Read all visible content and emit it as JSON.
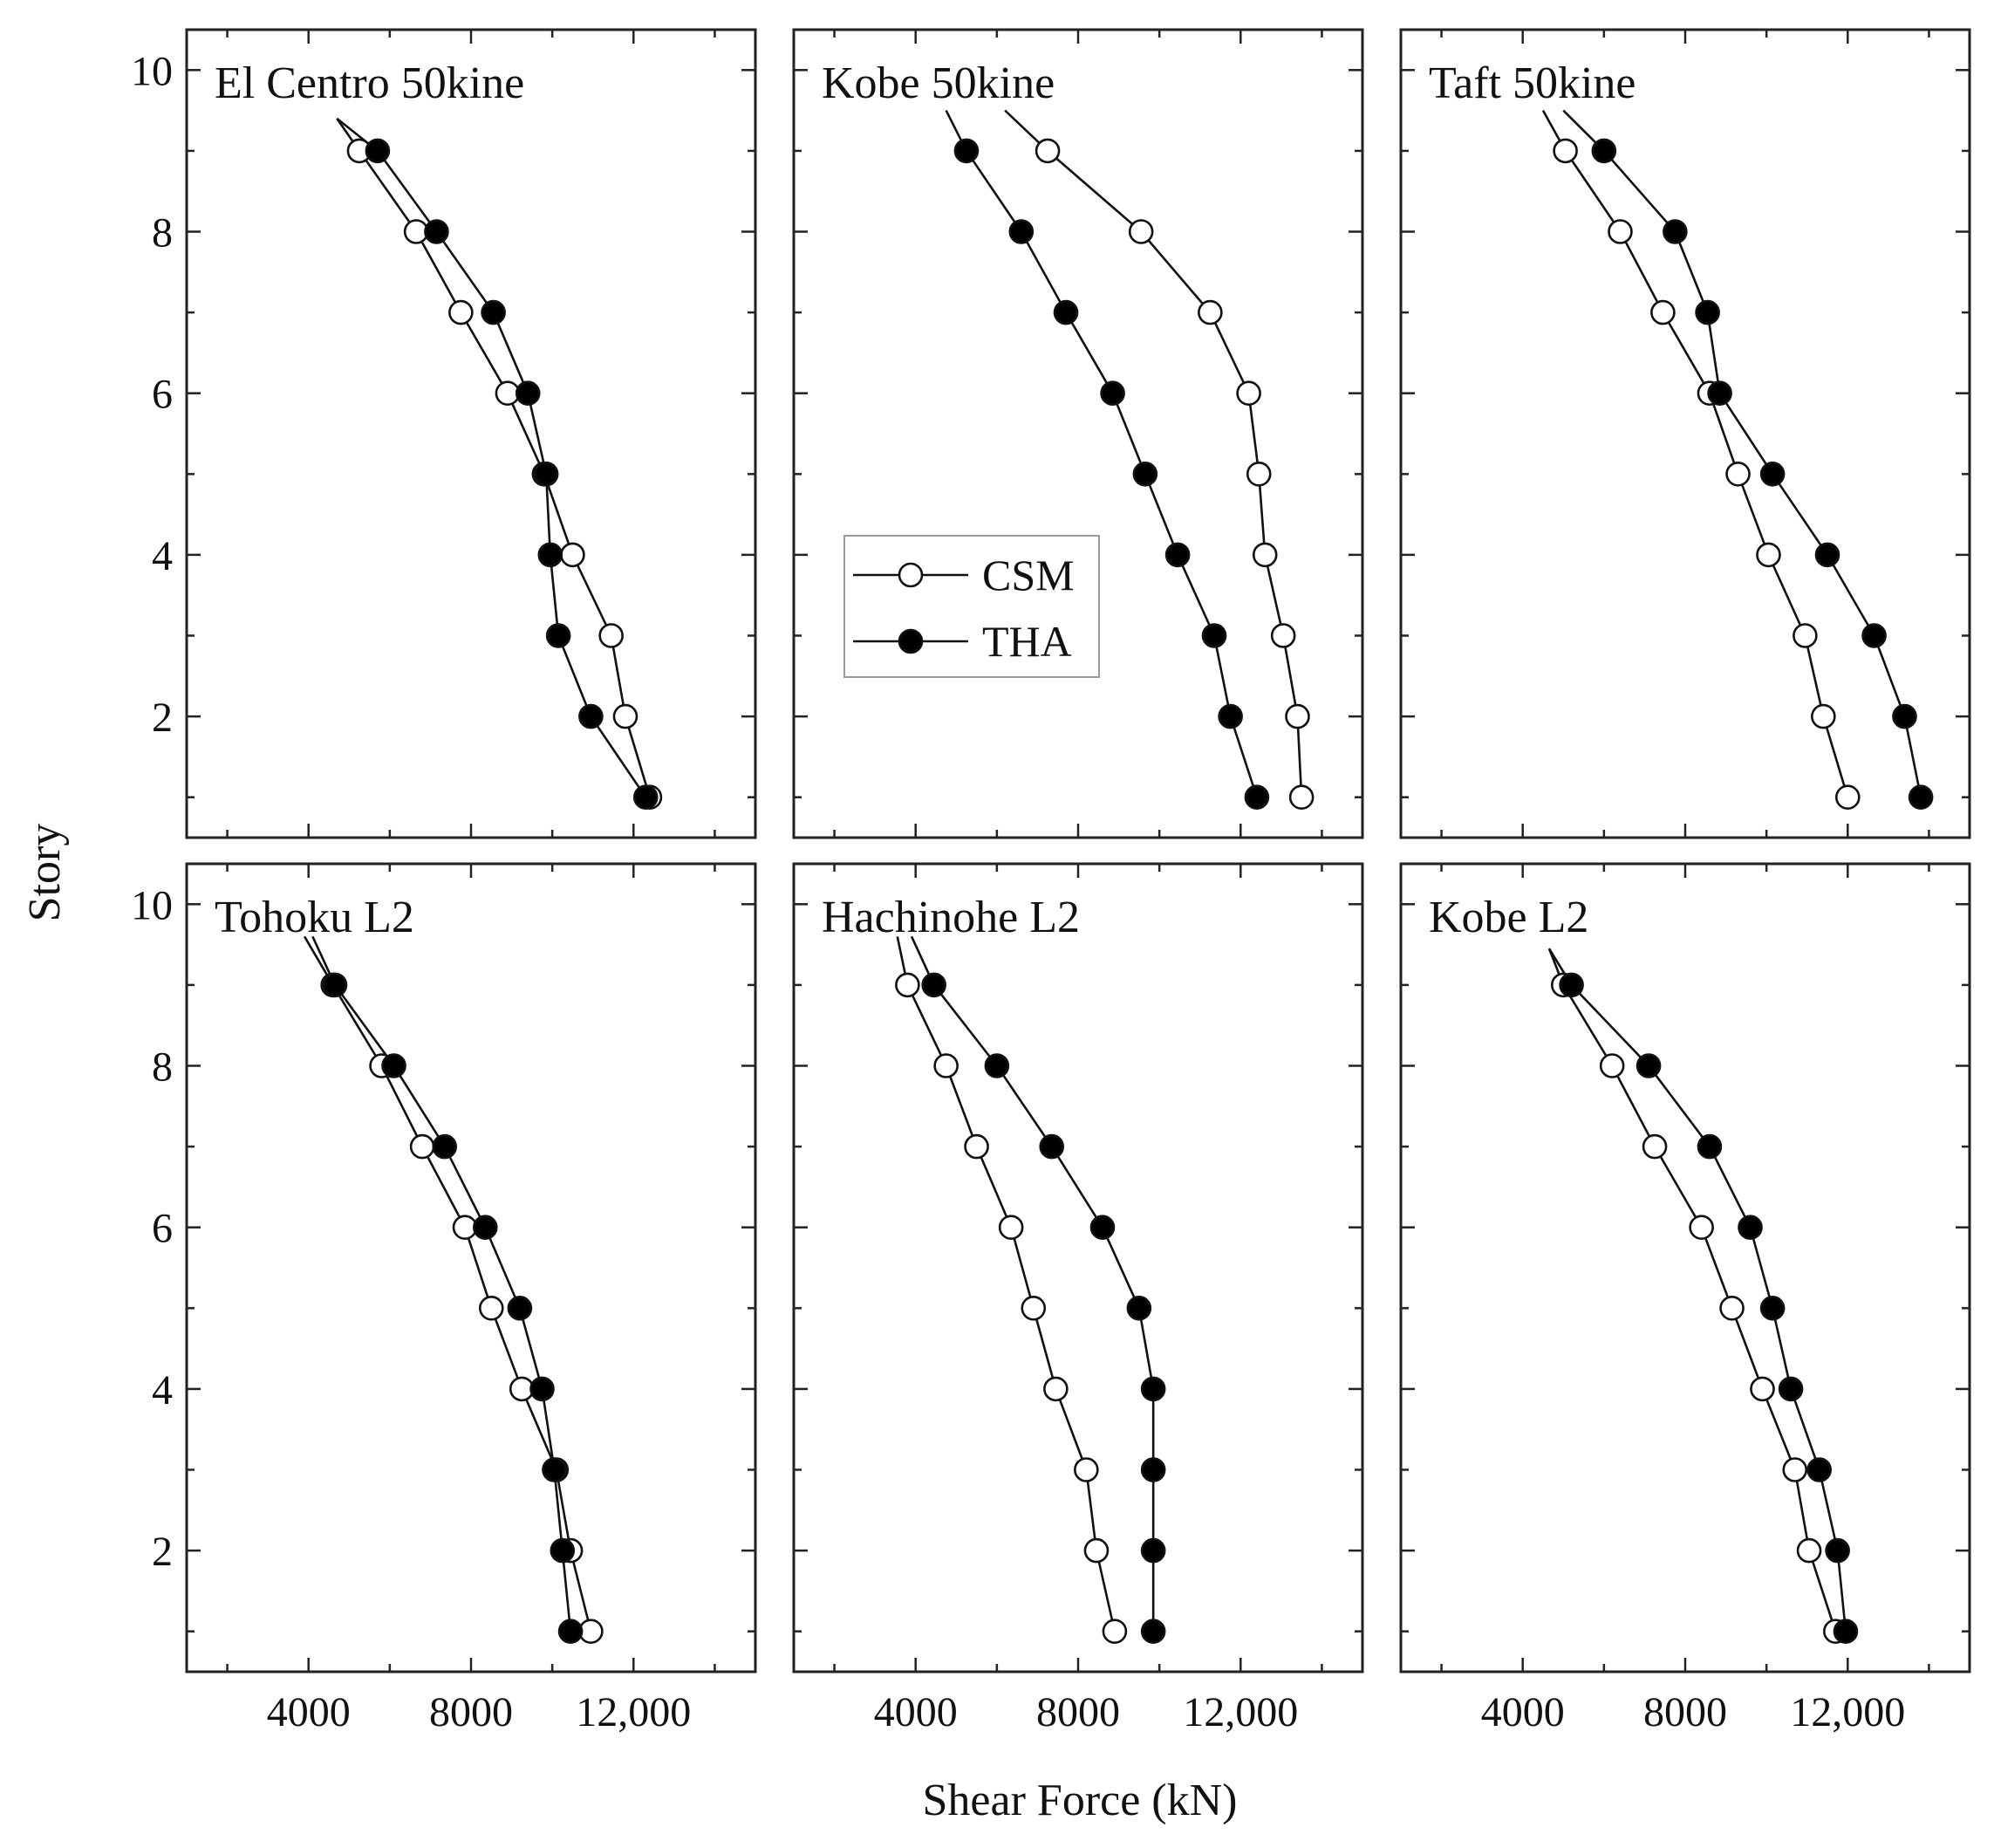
{
  "figure": {
    "xlabel": "Shear Force (kN)",
    "ylabel": "Story",
    "colors": {
      "csm_fill": "#ffffff",
      "tha_fill": "#000000",
      "line": "#111111"
    }
  },
  "chart_data": [
    {
      "type": "line",
      "title": "El Centro 50kine",
      "xlim": [
        1000,
        15000
      ],
      "ylim": [
        0.5,
        10.5
      ],
      "xticks": [
        4000,
        8000,
        12000
      ],
      "xtick_labels": [
        "4000",
        "8000",
        "12,000"
      ],
      "yticks": [
        2,
        4,
        6,
        8,
        10
      ],
      "ytick_labels": [
        "2",
        "4",
        "6",
        "8",
        "10"
      ],
      "stories": [
        1,
        2,
        3,
        4,
        5,
        6,
        7,
        8,
        9
      ],
      "series": [
        {
          "name": "CSM",
          "values": [
            12400,
            11800,
            11450,
            10500,
            9800,
            8900,
            7750,
            6650,
            5250
          ],
          "line_end": [
            4700,
            9.4
          ]
        },
        {
          "name": "THA",
          "values": [
            12300,
            10950,
            10150,
            9950,
            9850,
            9400,
            8550,
            7150,
            5700
          ],
          "line_end": [
            4700,
            9.4
          ]
        }
      ]
    },
    {
      "type": "line",
      "title": "Kobe 50kine",
      "xlim": [
        1000,
        15000
      ],
      "ylim": [
        0.5,
        10.5
      ],
      "xticks": [
        4000,
        8000,
        12000
      ],
      "xtick_labels": [
        "4000",
        "8000",
        "12,000"
      ],
      "yticks": [
        2,
        4,
        6,
        8,
        10
      ],
      "ytick_labels": [
        "2",
        "4",
        "6",
        "8",
        "10"
      ],
      "stories": [
        1,
        2,
        3,
        4,
        5,
        6,
        7,
        8,
        9
      ],
      "series": [
        {
          "name": "CSM",
          "values": [
            13500,
            13400,
            13050,
            12600,
            12450,
            12200,
            11250,
            9550,
            7250
          ],
          "line_end": [
            6200,
            9.5
          ]
        },
        {
          "name": "THA",
          "values": [
            12400,
            11750,
            11350,
            10450,
            9650,
            8850,
            7700,
            6600,
            5250
          ],
          "line_end": [
            4750,
            9.5
          ]
        }
      ],
      "legend": {
        "position": "center-left",
        "entries": [
          "CSM",
          "THA"
        ]
      }
    },
    {
      "type": "line",
      "title": "Taft 50kine",
      "xlim": [
        1000,
        15000
      ],
      "ylim": [
        0.5,
        10.5
      ],
      "xticks": [
        4000,
        8000,
        12000
      ],
      "xtick_labels": [
        "4000",
        "8000",
        "12,000"
      ],
      "yticks": [
        2,
        4,
        6,
        8,
        10
      ],
      "ytick_labels": [
        "2",
        "4",
        "6",
        "8",
        "10"
      ],
      "stories": [
        1,
        2,
        3,
        4,
        5,
        6,
        7,
        8,
        9
      ],
      "series": [
        {
          "name": "CSM",
          "values": [
            12000,
            11400,
            10950,
            10050,
            9300,
            8600,
            7450,
            6400,
            5050
          ],
          "line_end": [
            4500,
            9.5
          ]
        },
        {
          "name": "THA",
          "values": [
            13800,
            13400,
            12650,
            11500,
            10150,
            8850,
            8550,
            7750,
            6000
          ],
          "line_end": [
            5000,
            9.5
          ]
        }
      ]
    },
    {
      "type": "line",
      "title": "Tohoku L2",
      "xlim": [
        1000,
        15000
      ],
      "ylim": [
        0.5,
        10.5
      ],
      "xticks": [
        4000,
        8000,
        12000
      ],
      "xtick_labels": [
        "4000",
        "8000",
        "12,000"
      ],
      "yticks": [
        2,
        4,
        6,
        8,
        10
      ],
      "ytick_labels": [
        "2",
        "4",
        "6",
        "8",
        "10"
      ],
      "stories": [
        1,
        2,
        3,
        4,
        5,
        6,
        7,
        8,
        9
      ],
      "series": [
        {
          "name": "CSM",
          "values": [
            10950,
            10450,
            10100,
            9250,
            8500,
            7850,
            6800,
            5800,
            4600
          ],
          "line_end": [
            3900,
            9.6
          ]
        },
        {
          "name": "THA",
          "values": [
            10450,
            10250,
            10050,
            9750,
            9200,
            8350,
            7350,
            6100,
            4650
          ],
          "line_end": [
            4100,
            9.6
          ]
        }
      ]
    },
    {
      "type": "line",
      "title": "Hachinohe L2",
      "xlim": [
        1000,
        15000
      ],
      "ylim": [
        0.5,
        10.5
      ],
      "xticks": [
        4000,
        8000,
        12000
      ],
      "xtick_labels": [
        "4000",
        "8000",
        "12,000"
      ],
      "yticks": [
        2,
        4,
        6,
        8,
        10
      ],
      "ytick_labels": [
        "2",
        "4",
        "6",
        "8",
        "10"
      ],
      "stories": [
        1,
        2,
        3,
        4,
        5,
        6,
        7,
        8,
        9
      ],
      "series": [
        {
          "name": "CSM",
          "values": [
            8900,
            8450,
            8200,
            7450,
            6900,
            6350,
            5500,
            4750,
            3800
          ],
          "line_end": [
            3550,
            9.6
          ]
        },
        {
          "name": "THA",
          "values": [
            9850,
            9850,
            9850,
            9850,
            9500,
            8600,
            7350,
            6000,
            4450
          ],
          "line_end": [
            3900,
            9.6
          ]
        }
      ]
    },
    {
      "type": "line",
      "title": "Kobe L2",
      "xlim": [
        1000,
        15000
      ],
      "ylim": [
        0.5,
        10.5
      ],
      "xticks": [
        4000,
        8000,
        12000
      ],
      "xtick_labels": [
        "4000",
        "8000",
        "12,000"
      ],
      "yticks": [
        2,
        4,
        6,
        8,
        10
      ],
      "ytick_labels": [
        "2",
        "4",
        "6",
        "8",
        "10"
      ],
      "stories": [
        1,
        2,
        3,
        4,
        5,
        6,
        7,
        8,
        9
      ],
      "series": [
        {
          "name": "CSM",
          "values": [
            11700,
            11050,
            10700,
            9900,
            9150,
            8400,
            7250,
            6200,
            5000
          ],
          "line_end": [
            4650,
            9.45
          ]
        },
        {
          "name": "THA",
          "values": [
            11950,
            11750,
            11300,
            10600,
            10150,
            9600,
            8600,
            7100,
            5200
          ],
          "line_end": [
            4650,
            9.45
          ]
        }
      ]
    }
  ]
}
